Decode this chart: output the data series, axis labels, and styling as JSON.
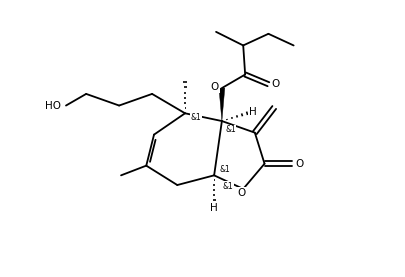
{
  "bg_color": "#ffffff",
  "line_color": "#000000",
  "line_width": 1.3,
  "font_size": 7.5,
  "figsize": [
    4.05,
    2.77
  ],
  "dpi": 100,
  "xlim": [
    0,
    10
  ],
  "ylim": [
    0,
    7
  ]
}
